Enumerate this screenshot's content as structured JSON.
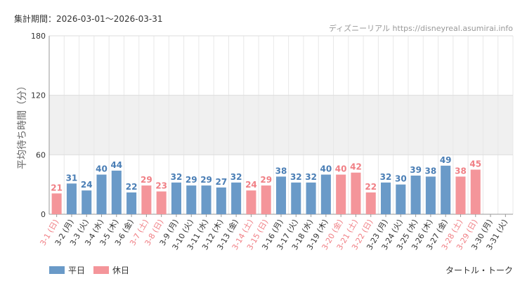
{
  "header": {
    "period": "集計期間：2026-03-01～2026-03-31",
    "source": "ディズニーリアル https://disneyreal.asumirai.info"
  },
  "footer": {
    "attraction": "タートル・トーク"
  },
  "chart_data": {
    "type": "bar",
    "ylabel": "平均待ち時間（分）",
    "ylim": [
      0,
      180
    ],
    "yticks": [
      0,
      60,
      120,
      180
    ],
    "grid": true,
    "legend_position": "bottom-left",
    "colors": {
      "weekday": "#6a9ac8",
      "holiday": "#f4959a",
      "weekday_label": "#4a7eb5",
      "holiday_label": "#f07f85"
    },
    "legend": [
      {
        "key": "weekday",
        "label": "平日"
      },
      {
        "key": "holiday",
        "label": "休日"
      }
    ],
    "categories": [
      "3-1 (日)",
      "3-2 (月)",
      "3-3 (火)",
      "3-4 (水)",
      "3-5 (木)",
      "3-6 (金)",
      "3-7 (土)",
      "3-8 (日)",
      "3-9 (月)",
      "3-10 (火)",
      "3-11 (水)",
      "3-12 (木)",
      "3-13 (金)",
      "3-14 (土)",
      "3-15 (日)",
      "3-16 (月)",
      "3-17 (火)",
      "3-18 (水)",
      "3-19 (木)",
      "3-20 (金)",
      "3-21 (土)",
      "3-22 (日)",
      "3-23 (月)",
      "3-24 (火)",
      "3-25 (水)",
      "3-26 (木)",
      "3-27 (金)",
      "3-28 (土)",
      "3-29 (日)",
      "3-30 (月)",
      "3-31 (火)"
    ],
    "values": [
      21,
      31,
      24,
      40,
      44,
      22,
      29,
      23,
      32,
      29,
      29,
      27,
      32,
      24,
      29,
      38,
      32,
      32,
      40,
      40,
      42,
      22,
      32,
      30,
      39,
      38,
      49,
      38,
      45,
      null,
      null
    ],
    "day_type": [
      "holiday",
      "weekday",
      "weekday",
      "weekday",
      "weekday",
      "weekday",
      "holiday",
      "holiday",
      "weekday",
      "weekday",
      "weekday",
      "weekday",
      "weekday",
      "holiday",
      "holiday",
      "weekday",
      "weekday",
      "weekday",
      "weekday",
      "holiday",
      "holiday",
      "holiday",
      "weekday",
      "weekday",
      "weekday",
      "weekday",
      "weekday",
      "holiday",
      "holiday",
      "weekday",
      "weekday"
    ]
  }
}
